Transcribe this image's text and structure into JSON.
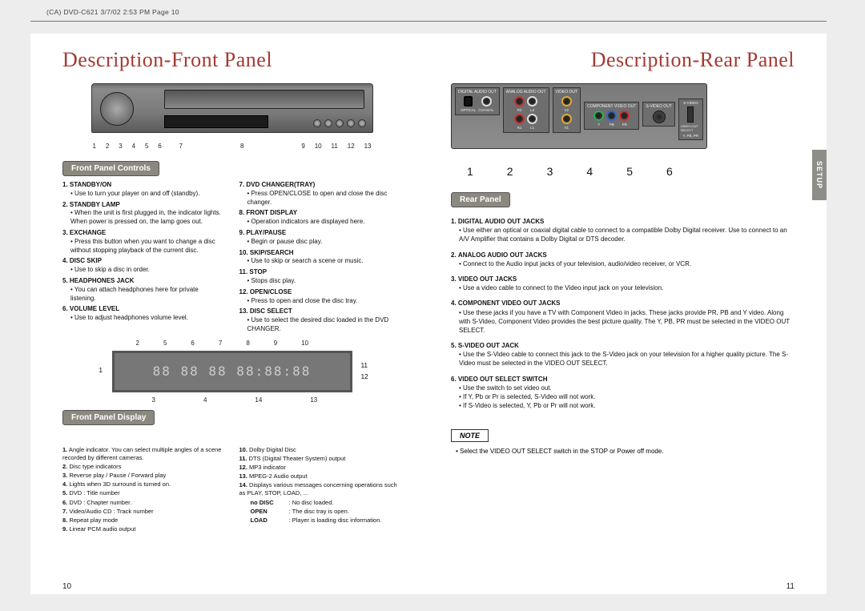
{
  "meta": {
    "header": "(CA) DVD-C621  3/7/02  2:53 PM  Page 10"
  },
  "left": {
    "title": "Description-Front Panel",
    "front_callouts": [
      "1",
      "2",
      "3",
      "4",
      "5",
      "6",
      "7",
      "8",
      "9",
      "10",
      "11",
      "12",
      "13"
    ],
    "controls_badge": "Front Panel Controls",
    "controls_colA": [
      {
        "n": "1.",
        "name": "STANDBY/ON",
        "desc": "Use to turn your player on and off (standby)."
      },
      {
        "n": "2.",
        "name": "STANDBY LAMP",
        "desc": "When the unit is first plugged in, the indicator lights. When power is pressed on, the lamp goes out."
      },
      {
        "n": "3.",
        "name": "EXCHANGE",
        "desc": "Press this button when you want to change a disc without stopping playback of the current disc."
      },
      {
        "n": "4.",
        "name": "DISC SKIP",
        "desc": "Use to skip a disc in order."
      },
      {
        "n": "5.",
        "name": "HEADPHONES JACK",
        "desc": "You can attach headphones here for private listening."
      },
      {
        "n": "6.",
        "name": "VOLUME LEVEL",
        "desc": "Use to adjust headphones volume level."
      }
    ],
    "controls_colB": [
      {
        "n": "7.",
        "name": "DVD CHANGER(TRAY)",
        "desc": "Press OPEN/CLOSE to open and close the disc changer."
      },
      {
        "n": "8.",
        "name": "FRONT DISPLAY",
        "desc": "Operation indicators are displayed here."
      },
      {
        "n": "9.",
        "name": "PLAY/PAUSE",
        "desc": "Begin or pause disc play."
      },
      {
        "n": "10.",
        "name": "SKIP/SEARCH",
        "desc": "Use to skip or search a scene or music."
      },
      {
        "n": "11.",
        "name": "STOP",
        "desc": "Stops disc play."
      },
      {
        "n": "12.",
        "name": "OPEN/CLOSE",
        "desc": "Press to open and close the disc tray."
      },
      {
        "n": "13.",
        "name": "DISC SELECT",
        "desc": "Use to select the desired disc loaded in the DVD CHANGER."
      }
    ],
    "disp_top": [
      "2",
      "5",
      "6",
      "7",
      "8",
      "9",
      "10"
    ],
    "disp_left": "1",
    "disp_right": [
      "11",
      "12"
    ],
    "disp_bot": [
      "3",
      "4",
      "14",
      "13"
    ],
    "display_badge": "Front Panel Display",
    "display_colA": [
      {
        "n": "1.",
        "t": "Angle indicator. You can select multiple angles of a scene recorded by different cameras."
      },
      {
        "n": "2.",
        "t": "Disc type indicators"
      },
      {
        "n": "3.",
        "t": "Reverse play / Pause / Forward play"
      },
      {
        "n": "4.",
        "t": "Lights when 3D surround is turned on."
      },
      {
        "n": "5.",
        "t": "DVD : Title number"
      },
      {
        "n": "6.",
        "t": "DVD : Chapter number."
      },
      {
        "n": "7.",
        "t": "Video/Audio CD : Track number"
      },
      {
        "n": "8.",
        "t": "Repeat play mode"
      },
      {
        "n": "9.",
        "t": "Linear PCM audio output"
      }
    ],
    "display_colB": [
      {
        "n": "10.",
        "t": "Dolby Digital Disc"
      },
      {
        "n": "11.",
        "t": "DTS (Digital Theater System) output"
      },
      {
        "n": "12.",
        "t": "MP3 indicator"
      },
      {
        "n": "13.",
        "t": "MPEG-2 Audio output"
      },
      {
        "n": "14.",
        "t": "Displays various messages concerning operations such as PLAY, STOP, LOAD, ..."
      }
    ],
    "display_msgs": [
      {
        "k": "no DISC",
        "v": ": No disc loaded."
      },
      {
        "k": "OPEN",
        "v": ": The disc tray is open."
      },
      {
        "k": "LOAD",
        "v": ": Player is loading disc information."
      }
    ],
    "page_num": "10"
  },
  "right": {
    "title": "Description-Rear Panel",
    "setup_tab": "SETUP",
    "rear_groups": {
      "digital": "DIGITAL AUDIO OUT",
      "analog": "ANALOG AUDIO OUT",
      "video": "VIDEO OUT",
      "component": "COMPONENT VIDEO OUT",
      "svideo": "S-VIDEO OUT",
      "optical": "OPTICAL",
      "coaxial": "COAXIAL",
      "select_top": "S-VIDEO",
      "select_mid": "VIDEO OUT SELECT",
      "select_bot": "Y, PB, PR"
    },
    "rear_callouts": [
      "1",
      "2",
      "3",
      "4",
      "5",
      "6"
    ],
    "rear_badge": "Rear Panel",
    "rear_items": [
      {
        "n": "1.",
        "name": "DIGITAL AUDIO OUT JACKS",
        "desc": "Use either an optical or coaxial digital cable to connect to a compatible Dolby Digital receiver. Use to connect to an A/V Amplifier that contains a Dolby Digital or DTS decoder."
      },
      {
        "n": "2.",
        "name": "ANALOG AUDIO OUT JACKS",
        "desc": "Connect to the Audio input jacks of your television, audio/video receiver, or VCR."
      },
      {
        "n": "3.",
        "name": "VIDEO OUT JACKS",
        "desc": "Use a video cable to connect to the Video input jack on your television."
      },
      {
        "n": "4.",
        "name": "COMPONENT VIDEO OUT JACKS",
        "desc": "Use these jacks if you have a TV with Component Video in jacks. These jacks provide PR, PB and Y video. Along with S-Video, Component Video provides the best picture quality. The Y, PB, PR must be selected in the VIDEO OUT SELECT."
      },
      {
        "n": "5.",
        "name": "S-VIDEO OUT JACK",
        "desc": "Use the S-Video cable to connect this jack to the S-Video jack on your television for a higher quality picture. The S-Video must be selected in the VIDEO OUT SELECT."
      },
      {
        "n": "6.",
        "name": "VIDEO OUT SELECT SWITCH",
        "desc": "Use the switch to set video out.",
        "extra1": "If Y, Pb or Pr is selected, S-Video will not work.",
        "extra2": "If S-Video is selected, Y, Pb or Pr will not work."
      }
    ],
    "note_hdr": "NOTE",
    "note_body": "Select the VIDEO OUT SELECT switch in the STOP or Power off mode.",
    "page_num": "11"
  }
}
